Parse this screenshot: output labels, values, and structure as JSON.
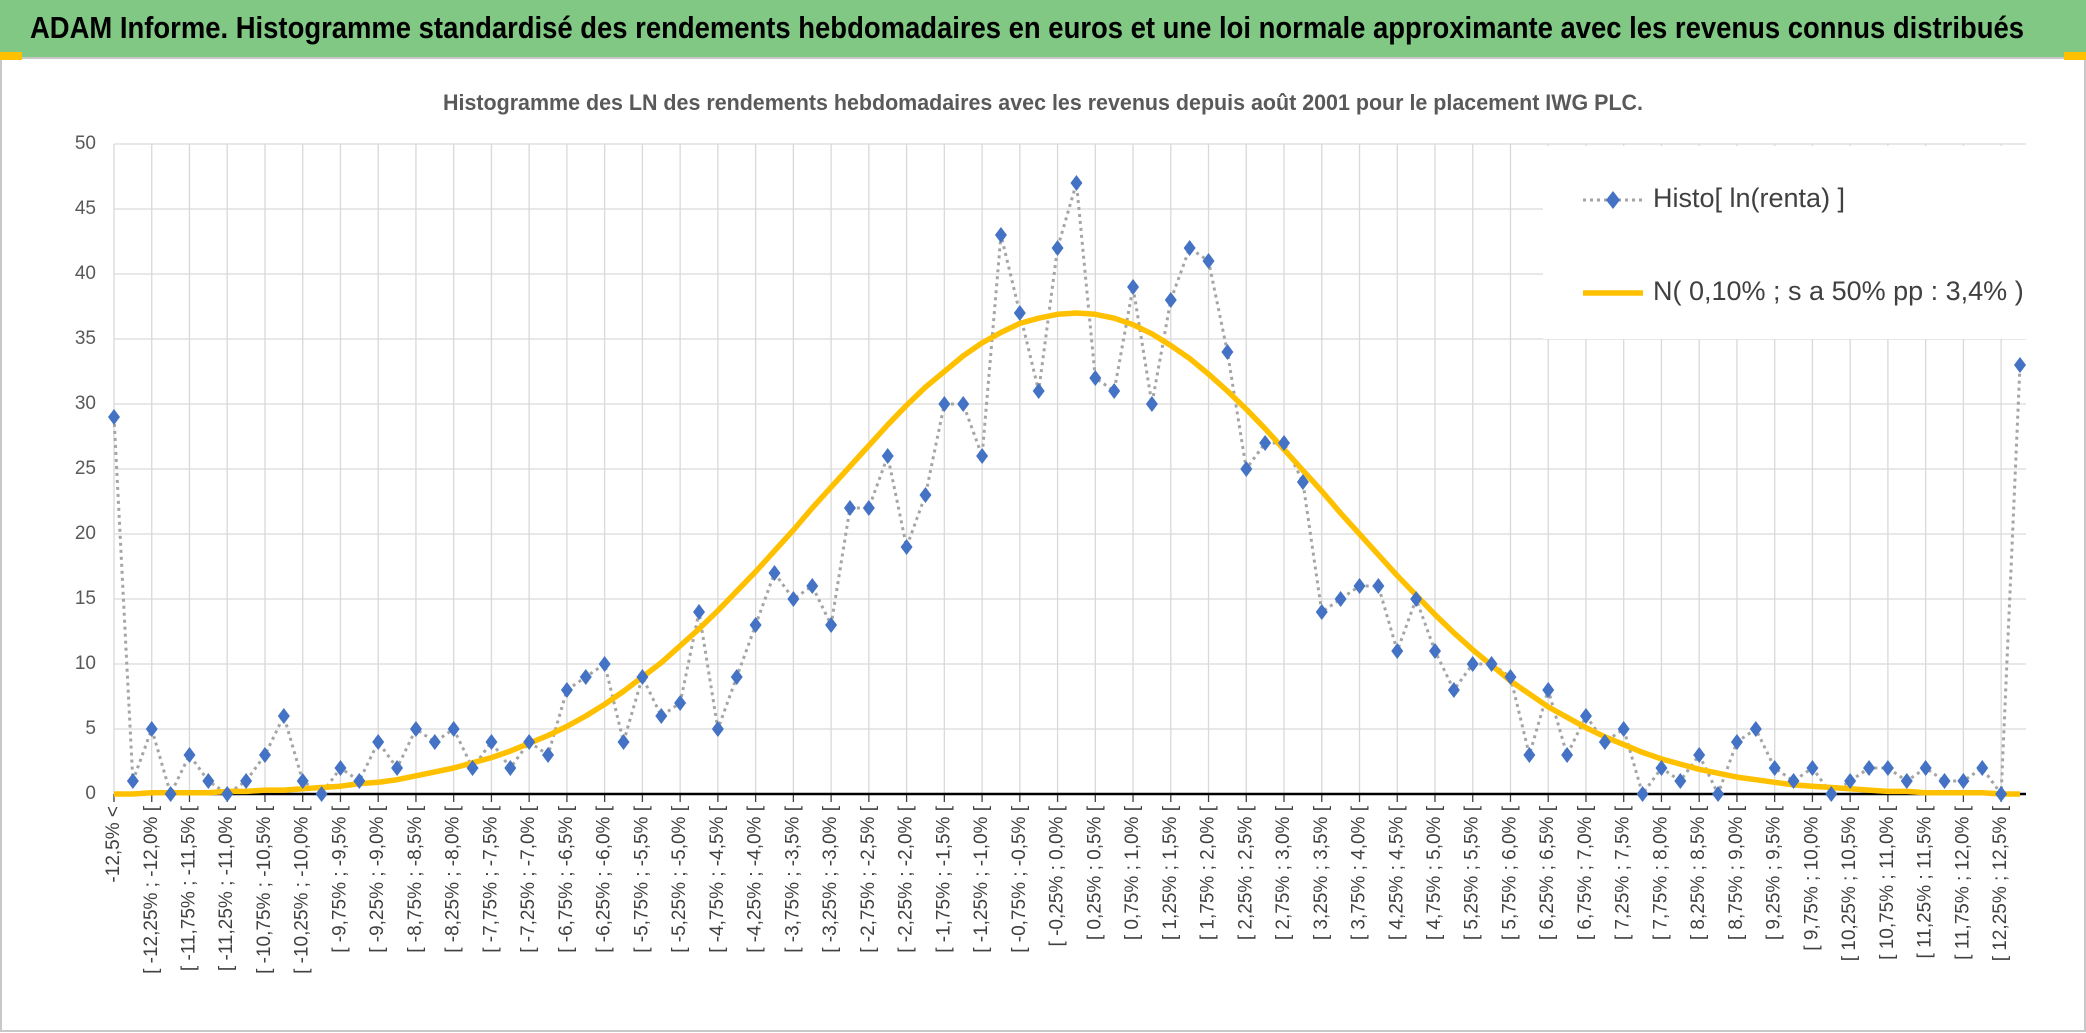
{
  "header": {
    "title": "ADAM Informe. Histogramme standardisé des rendements hebdomadaires en euros et une loi normale approximante avec les revenus connus distribués"
  },
  "chart_data": {
    "type": "line",
    "title": "Histogramme des LN des rendements hebdomadaires avec les revenus depuis août 2001 pour le placement IWG PLC.",
    "categories": [
      "-12,5% <",
      null,
      "[ -12,25% ; -12,0% [",
      null,
      "[ -11,75% ; -11,5% [",
      null,
      "[ -11,25% ; -11,0% [",
      null,
      "[ -10,75% ; -10,5% [",
      null,
      "[ -10,25% ; -10,0% [",
      null,
      "[ -9,75% ; -9,5% [",
      null,
      "[ -9,25% ; -9,0% [",
      null,
      "[ -8,75% ; -8,5% [",
      null,
      "[ -8,25% ; -8,0% [",
      null,
      "[ -7,75% ; -7,5% [",
      null,
      "[ -7,25% ; -7,0% [",
      null,
      "[ -6,75% ; -6,5% [",
      null,
      "[ -6,25% ; -6,0% [",
      null,
      "[ -5,75% ; -5,5% [",
      null,
      "[ -5,25% ; -5,0% [",
      null,
      "[ -4,75% ; -4,5% [",
      null,
      "[ -4,25% ; -4,0% [",
      null,
      "[ -3,75% ; -3,5% [",
      null,
      "[ -3,25% ; -3,0% [",
      null,
      "[ -2,75% ; -2,5% [",
      null,
      "[ -2,25% ; -2,0% [",
      null,
      "[ -1,75% ; -1,5% [",
      null,
      "[ -1,25% ; -1,0% [",
      null,
      "[ -0,75% ; -0,5% [",
      null,
      "[ -0,25% ; 0,0% [",
      null,
      "[ 0,25% ; 0,5% [",
      null,
      "[ 0,75% ; 1,0% [",
      null,
      "[ 1,25% ; 1,5% [",
      null,
      "[ 1,75% ; 2,0% [",
      null,
      "[ 2,25% ; 2,5% [",
      null,
      "[ 2,75% ; 3,0% [",
      null,
      "[ 3,25% ; 3,5% [",
      null,
      "[ 3,75% ; 4,0% [",
      null,
      "[ 4,25% ; 4,5% [",
      null,
      "[ 4,75% ; 5,0% [",
      null,
      "[ 5,25% ; 5,5% [",
      null,
      "[ 5,75% ; 6,0% [",
      null,
      "[ 6,25% ; 6,5% [",
      null,
      "[ 6,75% ; 7,0% [",
      null,
      "[ 7,25% ; 7,5% [",
      null,
      "[ 7,75% ; 8,0% [",
      null,
      "[ 8,25% ; 8,5% [",
      null,
      "[ 8,75% ; 9,0% [",
      null,
      "[ 9,25% ; 9,5% [",
      null,
      "[ 9,75% ; 10,0% [",
      null,
      "[ 10,25% ; 10,5% [",
      null,
      "[ 10,75% ; 11,0% [",
      null,
      "[ 11,25% ; 11,5% [",
      null,
      "[ 11,75% ; 12,0% [",
      null,
      "[ 12,25% ; 12,5% [",
      null
    ],
    "series": [
      {
        "name": "Histo[ ln(renta) ]",
        "color": "#4472c4",
        "marker": "diamond",
        "line": "dotted",
        "values": [
          29,
          1,
          5,
          0,
          3,
          1,
          0,
          1,
          3,
          6,
          1,
          0,
          2,
          1,
          4,
          2,
          5,
          4,
          5,
          2,
          4,
          2,
          4,
          3,
          8,
          9,
          10,
          4,
          9,
          6,
          7,
          14,
          5,
          9,
          13,
          17,
          15,
          16,
          13,
          22,
          22,
          26,
          19,
          23,
          30,
          30,
          26,
          43,
          37,
          31,
          42,
          47,
          32,
          31,
          39,
          30,
          38,
          42,
          41,
          34,
          25,
          27,
          27,
          24,
          14,
          15,
          16,
          16,
          11,
          15,
          11,
          8,
          10,
          10,
          9,
          3,
          8,
          3,
          6,
          4,
          5,
          0,
          2,
          1,
          3,
          0,
          4,
          5,
          2,
          1,
          2,
          0,
          1,
          2,
          2,
          1,
          2,
          1,
          1,
          2,
          0,
          33
        ]
      },
      {
        "name": "N( 0,10% ; s a 50% pp : 3,4% )",
        "color": "#ffc000",
        "marker": null,
        "line": "solid",
        "values": [
          0,
          0,
          0.1,
          0.1,
          0.1,
          0.1,
          0.2,
          0.2,
          0.3,
          0.3,
          0.4,
          0.5,
          0.6,
          0.8,
          0.9,
          1.1,
          1.4,
          1.7,
          2,
          2.4,
          2.8,
          3.3,
          3.9,
          4.5,
          5.2,
          6,
          6.9,
          7.9,
          9,
          10.1,
          11.4,
          12.7,
          14.1,
          15.6,
          17.1,
          18.7,
          20.3,
          22,
          23.6,
          25.2,
          26.8,
          28.4,
          29.9,
          31.3,
          32.5,
          33.7,
          34.7,
          35.5,
          36.2,
          36.6,
          36.9,
          37,
          36.9,
          36.6,
          36.1,
          35.4,
          34.5,
          33.5,
          32.3,
          31,
          29.6,
          28.1,
          26.5,
          24.9,
          23.3,
          21.6,
          20,
          18.4,
          16.8,
          15.3,
          13.8,
          12.4,
          11.1,
          9.9,
          8.7,
          7.7,
          6.7,
          5.9,
          5.1,
          4.4,
          3.8,
          3.2,
          2.7,
          2.3,
          1.9,
          1.6,
          1.3,
          1.1,
          0.9,
          0.7,
          0.6,
          0.5,
          0.4,
          0.3,
          0.2,
          0.2,
          0.1,
          0.1,
          0.1,
          0.1,
          0,
          0
        ]
      }
    ],
    "ylim": [
      0,
      50
    ],
    "yticks": [
      0,
      5,
      10,
      15,
      20,
      25,
      30,
      35,
      40,
      45,
      50
    ],
    "grid": true,
    "legend": "top-right"
  }
}
